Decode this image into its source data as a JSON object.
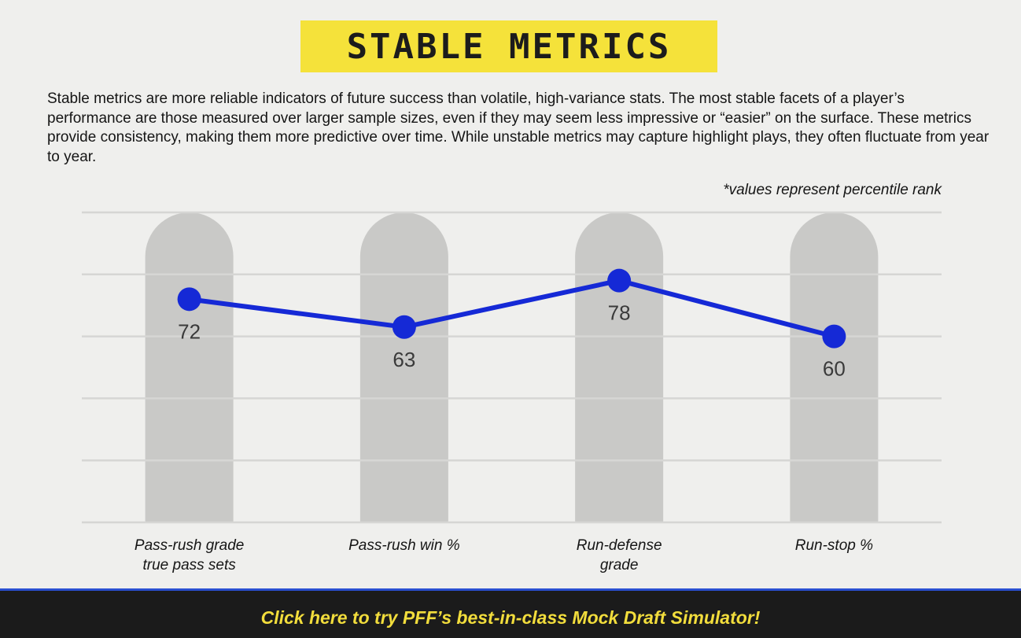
{
  "header": {
    "title": "Stable Metrics",
    "description": "Stable metrics are more reliable indicators of future success than volatile, high-variance stats. The most stable facets of a player’s performance are those measured over larger sample sizes, even if they may seem less impressive or “easier” on the surface. These metrics provide consistency, making them more predictive over time. While unstable metrics may capture highlight plays, they often fluctuate from year to year."
  },
  "chart_data": {
    "type": "line",
    "note": "*values represent percentile rank",
    "categories": [
      "Pass-rush grade\ntrue pass sets",
      "Pass-rush win %",
      "Run-defense\ngrade",
      "Run-stop %"
    ],
    "values": [
      72,
      63,
      78,
      60
    ],
    "color": "#1529d6",
    "ylim": [
      0,
      100
    ],
    "yticks": [
      0,
      20,
      40,
      60,
      80,
      100
    ],
    "grid": true
  },
  "footer": {
    "link": "Click here to try PFF’s best-in-class Mock Draft Simulator!"
  }
}
